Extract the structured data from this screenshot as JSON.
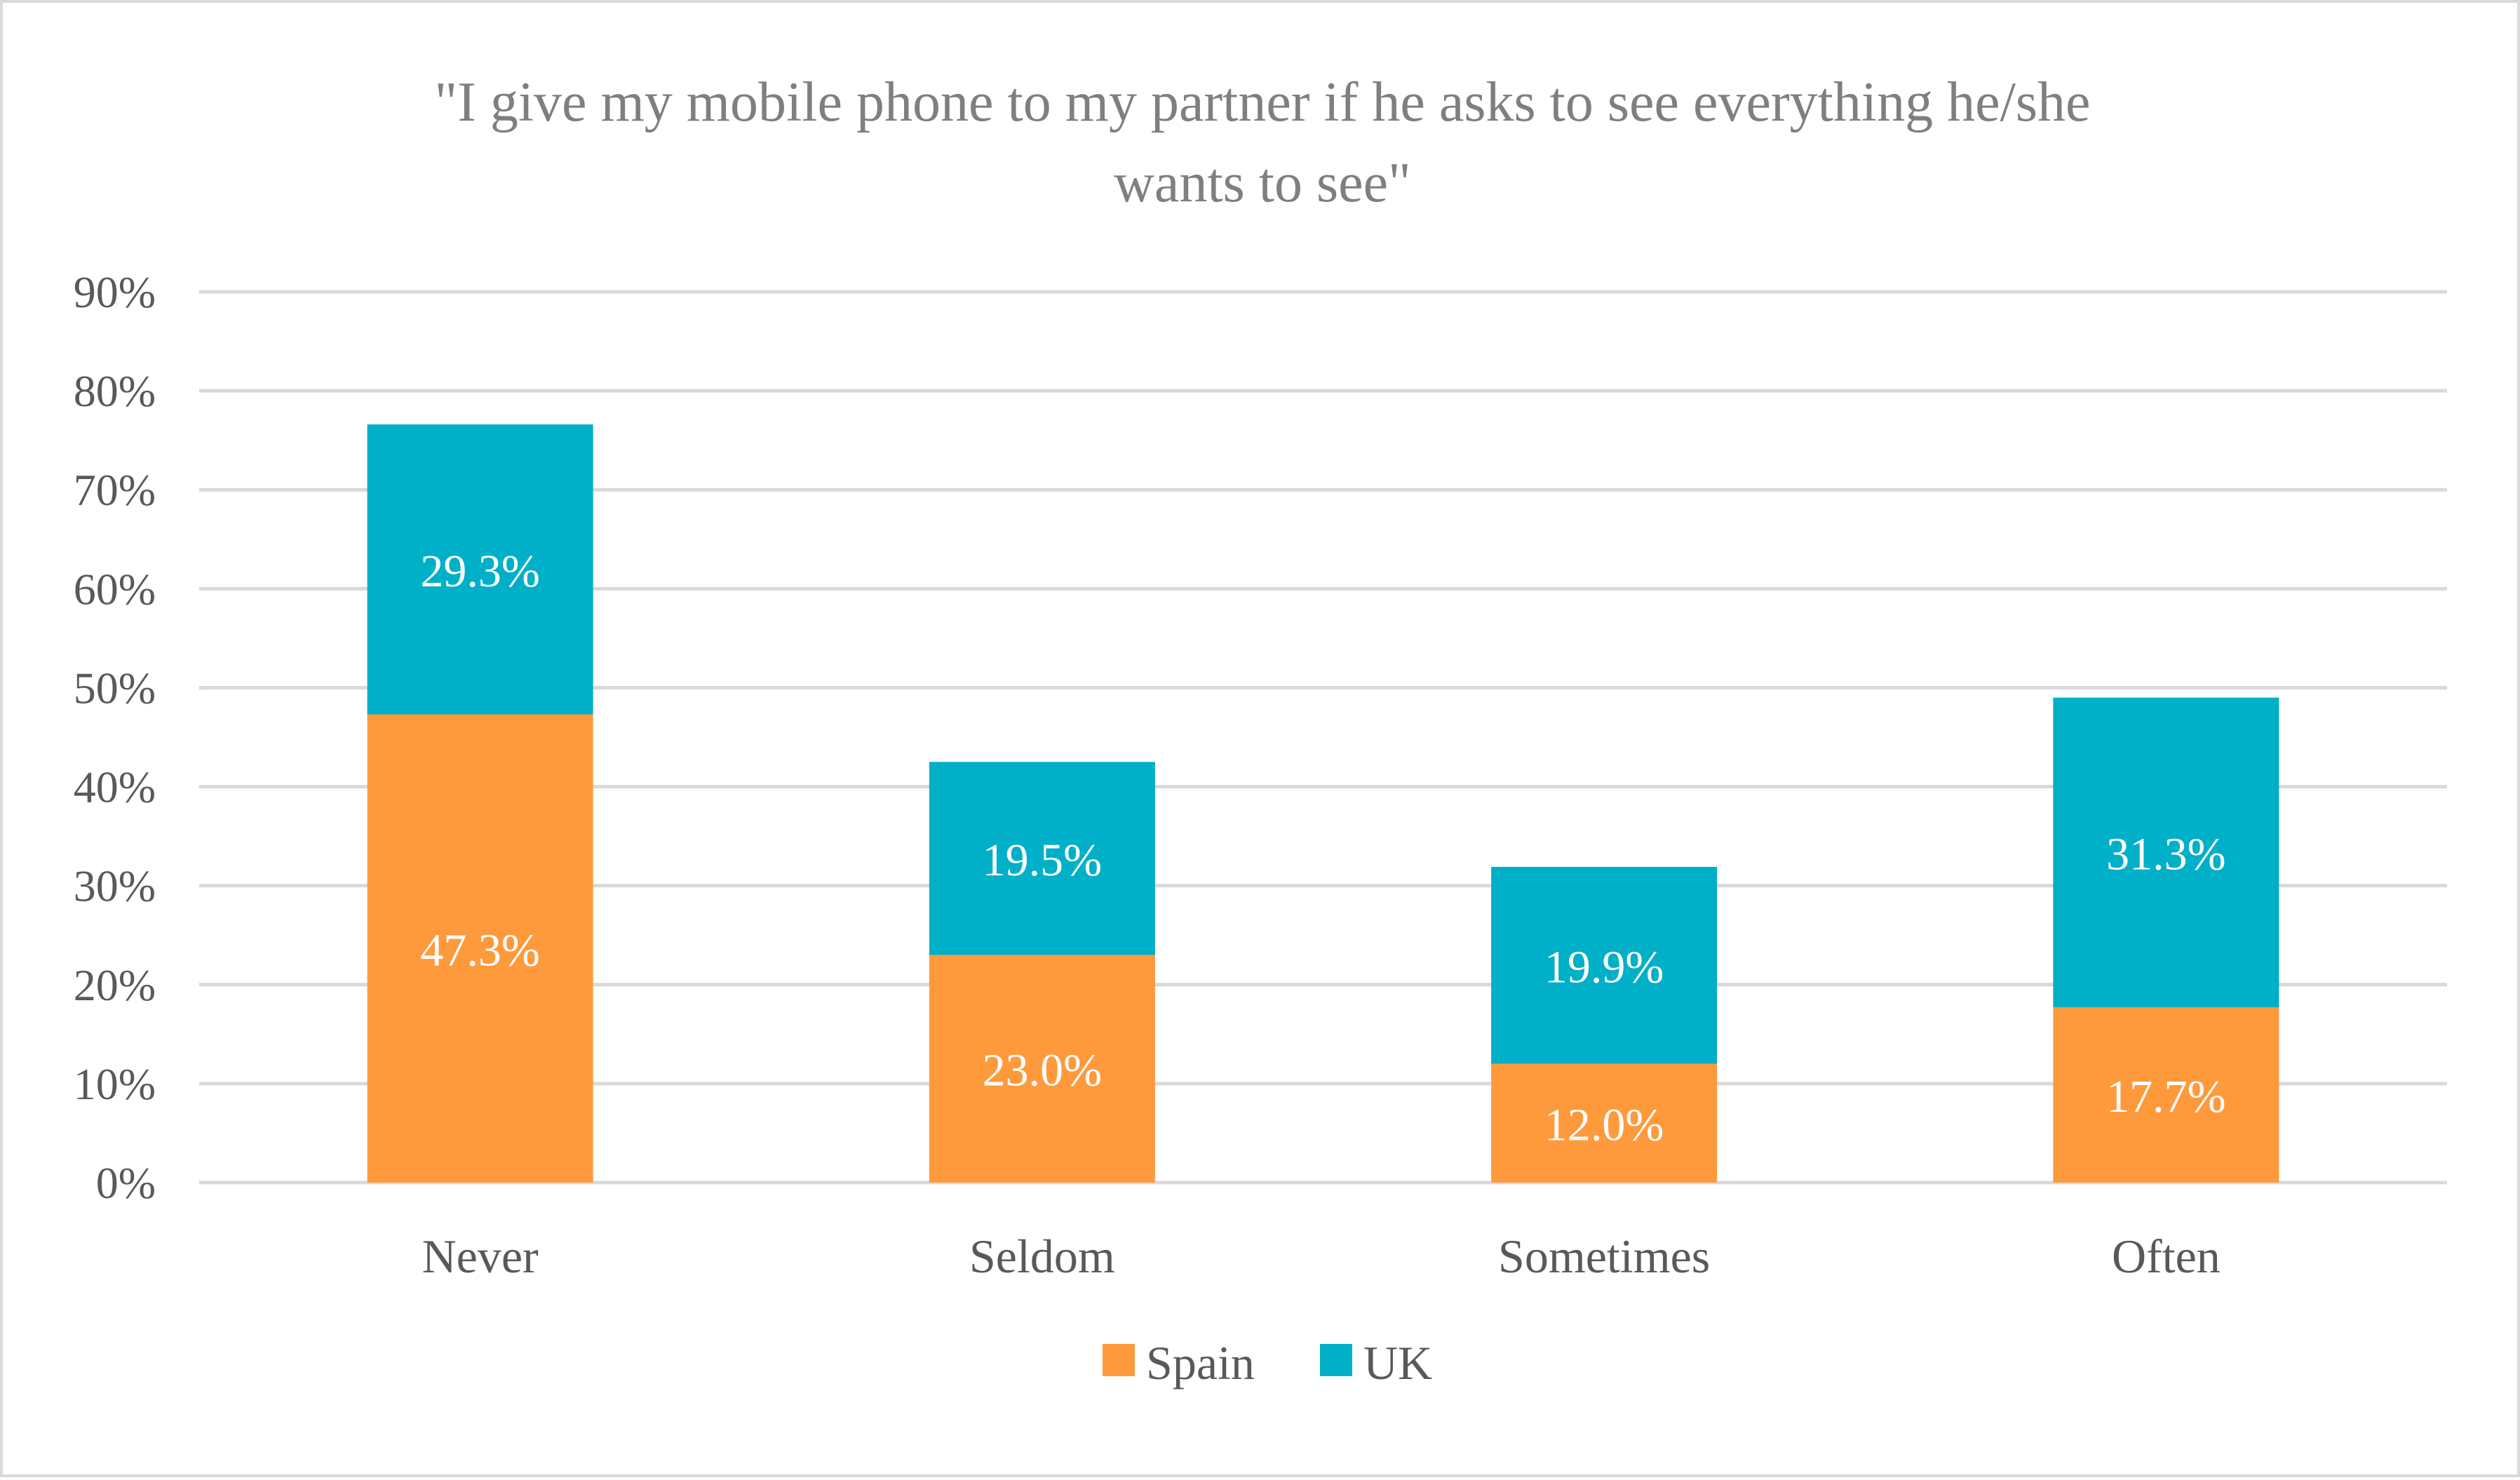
{
  "chart_data": {
    "type": "bar",
    "stacked": true,
    "title_lines": [
      "\"I give my mobile phone to my partner if he asks to see everything he/she",
      "wants to see\""
    ],
    "categories": [
      "Never",
      "Seldom",
      "Sometimes",
      "Often"
    ],
    "series": [
      {
        "name": "Spain",
        "color": "#ff9a3c",
        "values": [
          47.3,
          23.0,
          12.0,
          17.7
        ],
        "labels": [
          "47.3%",
          "23.0%",
          "12.0%",
          "17.7%"
        ]
      },
      {
        "name": "UK",
        "color": "#00afc8",
        "values": [
          29.3,
          19.5,
          19.9,
          31.3
        ],
        "labels": [
          "29.3%",
          "19.5%",
          "19.9%",
          "31.3%"
        ]
      }
    ],
    "ylim": [
      0,
      90
    ],
    "yticks": [
      0,
      10,
      20,
      30,
      40,
      50,
      60,
      70,
      80,
      90
    ],
    "ytick_labels": [
      "0%",
      "10%",
      "20%",
      "30%",
      "40%",
      "50%",
      "60%",
      "70%",
      "80%",
      "90%"
    ],
    "grid": true,
    "legend_position": "bottom"
  }
}
